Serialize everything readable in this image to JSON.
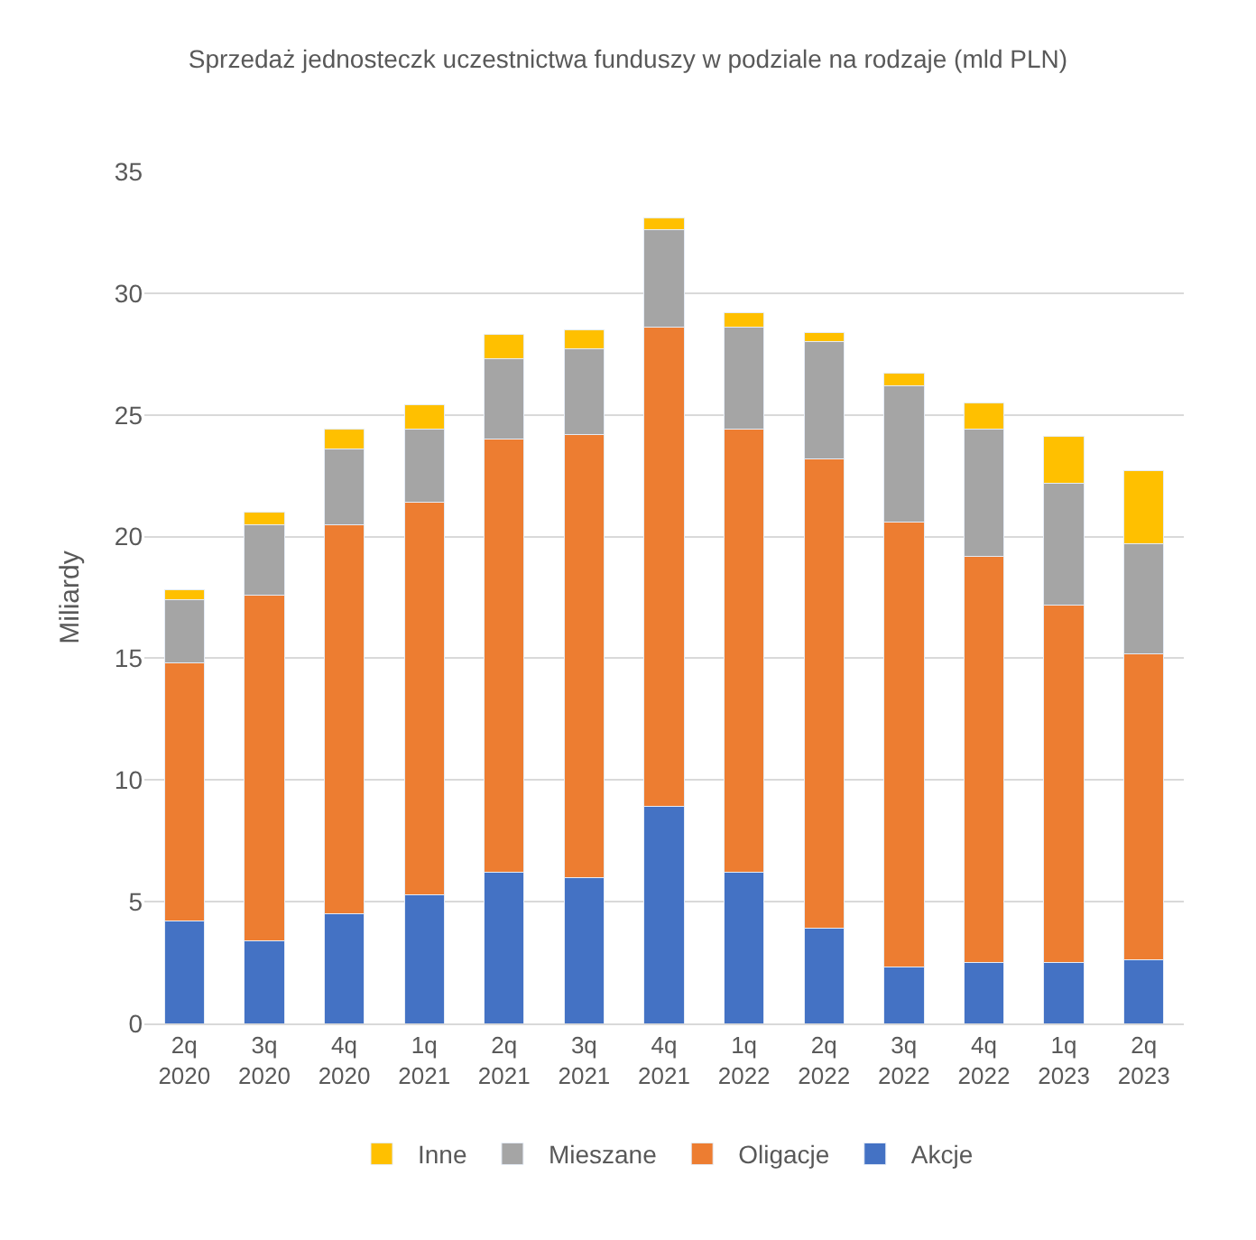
{
  "chart_data": {
    "type": "bar",
    "stacked": true,
    "title": "Sprzedaż jednosteczk uczestnictwa funduszy w podziale na rodzaje (mld PLN)",
    "ylabel": "Miliardy",
    "categories": [
      "2q 2020",
      "3q 2020",
      "4q 2020",
      "1q 2021",
      "2q 2021",
      "3q 2021",
      "4q 2021",
      "1q 2022",
      "2q 2022",
      "3q 2022",
      "4q 2022",
      "1q 2023",
      "2q 2023"
    ],
    "series": [
      {
        "name": "Akcje",
        "color": "#4472c4",
        "values": [
          4.2,
          3.4,
          4.5,
          5.3,
          6.2,
          6.0,
          8.9,
          6.2,
          3.9,
          2.3,
          2.5,
          2.5,
          2.6
        ]
      },
      {
        "name": "Oligacje",
        "color": "#ed7d31",
        "values": [
          10.6,
          14.2,
          16.0,
          16.1,
          17.8,
          18.2,
          19.7,
          18.2,
          19.3,
          18.3,
          16.7,
          14.7,
          12.6
        ]
      },
      {
        "name": "Mieszane",
        "color": "#a5a5a5",
        "values": [
          2.6,
          2.9,
          3.1,
          3.0,
          3.3,
          3.5,
          4.0,
          4.2,
          4.8,
          5.6,
          5.2,
          5.0,
          4.5
        ]
      },
      {
        "name": "Inne",
        "color": "#ffc000",
        "values": [
          0.4,
          0.5,
          0.8,
          1.0,
          1.0,
          0.8,
          0.5,
          0.6,
          0.4,
          0.5,
          1.1,
          1.9,
          3.0
        ]
      }
    ],
    "ylim": [
      0,
      35
    ],
    "yticks": [
      0,
      5,
      10,
      15,
      20,
      25,
      30,
      35
    ],
    "grid": "y",
    "legend": "bottom"
  }
}
